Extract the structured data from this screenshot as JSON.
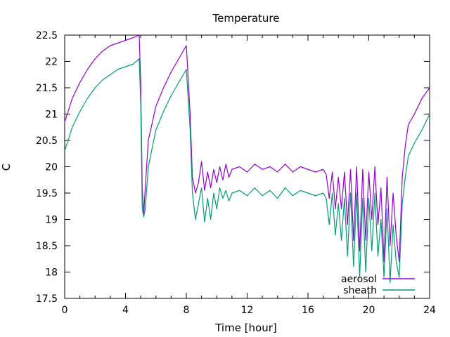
{
  "chart_data": {
    "type": "line",
    "title": "Temperature",
    "xlabel": "Time [hour]",
    "ylabel": "C",
    "xlim": [
      0,
      24
    ],
    "ylim": [
      17.5,
      22.5
    ],
    "xticks": [
      0,
      4,
      8,
      12,
      16,
      20,
      24
    ],
    "xtick_labels": [
      "0",
      "4",
      "8",
      "12",
      "16",
      "20",
      "24"
    ],
    "x_minor_step": 1,
    "yticks": [
      17.5,
      18,
      18.5,
      19,
      19.5,
      20,
      20.5,
      21,
      21.5,
      22,
      22.5
    ],
    "ytick_labels": [
      "17.5",
      "18",
      "18.5",
      "19",
      "19.5",
      "20",
      "20.5",
      "21",
      "21.5",
      "22",
      "22.5"
    ],
    "grid": false,
    "legend_position": "bottom-right",
    "series": [
      {
        "name": "aerosol",
        "color": "#9400d3",
        "x": [
          0,
          0.5,
          1,
          1.5,
          2,
          2.5,
          3,
          3.5,
          4,
          4.5,
          4.9,
          5.0,
          5.05,
          5.1,
          5.2,
          5.3,
          5.5,
          6,
          6.5,
          7,
          7.5,
          8,
          8.25,
          8.4,
          8.6,
          8.8,
          9,
          9.2,
          9.4,
          9.6,
          9.8,
          10,
          10.2,
          10.4,
          10.6,
          10.8,
          11,
          11.5,
          12,
          12.5,
          13,
          13.5,
          14,
          14.5,
          15,
          15.5,
          16,
          16.5,
          17,
          17.2,
          17.4,
          17.6,
          17.8,
          18,
          18.2,
          18.4,
          18.6,
          18.8,
          19,
          19.2,
          19.4,
          19.6,
          19.8,
          20,
          20.2,
          20.4,
          20.6,
          20.8,
          21,
          21.2,
          21.4,
          21.6,
          21.8,
          22,
          22.2,
          22.4,
          22.6,
          23,
          23.5,
          24
        ],
        "values": [
          20.85,
          21.3,
          21.6,
          21.85,
          22.05,
          22.2,
          22.3,
          22.35,
          22.4,
          22.45,
          22.5,
          21.6,
          20.6,
          19.6,
          19.1,
          19.6,
          20.5,
          21.15,
          21.5,
          21.8,
          22.05,
          22.3,
          21.0,
          19.8,
          19.5,
          19.7,
          20.1,
          19.55,
          19.9,
          19.6,
          19.95,
          19.7,
          20.0,
          19.75,
          20.05,
          19.8,
          19.95,
          20.0,
          19.9,
          20.05,
          19.95,
          20.0,
          19.9,
          20.05,
          19.9,
          20.0,
          19.95,
          19.9,
          19.95,
          19.85,
          19.4,
          19.9,
          19.2,
          19.8,
          19.2,
          19.9,
          18.9,
          19.95,
          18.6,
          20.0,
          18.4,
          19.95,
          18.6,
          19.9,
          19.0,
          20.0,
          18.9,
          19.6,
          18.2,
          19.8,
          18.5,
          19.5,
          18.7,
          18.2,
          19.8,
          20.4,
          20.8,
          21.0,
          21.3,
          21.5
        ]
      },
      {
        "name": "sheath",
        "color": "#009e73",
        "x": [
          0,
          0.5,
          1,
          1.5,
          2,
          2.5,
          3,
          3.5,
          4,
          4.5,
          4.9,
          5.0,
          5.05,
          5.1,
          5.2,
          5.3,
          5.5,
          6,
          6.5,
          7,
          7.5,
          8,
          8.25,
          8.4,
          8.6,
          8.8,
          9,
          9.2,
          9.4,
          9.6,
          9.8,
          10,
          10.2,
          10.4,
          10.6,
          10.8,
          11,
          11.5,
          12,
          12.5,
          13,
          13.5,
          14,
          14.5,
          15,
          15.5,
          16,
          16.5,
          17,
          17.2,
          17.4,
          17.6,
          17.8,
          18,
          18.2,
          18.4,
          18.6,
          18.8,
          19,
          19.2,
          19.4,
          19.6,
          19.8,
          20,
          20.2,
          20.4,
          20.6,
          20.8,
          21,
          21.2,
          21.4,
          21.6,
          21.8,
          22,
          22.2,
          22.4,
          22.6,
          23,
          23.5,
          24
        ],
        "values": [
          20.3,
          20.75,
          21.05,
          21.3,
          21.5,
          21.65,
          21.75,
          21.85,
          21.9,
          21.95,
          22.05,
          21.2,
          20.2,
          19.2,
          19.05,
          19.2,
          20.0,
          20.7,
          21.05,
          21.35,
          21.6,
          21.85,
          20.7,
          19.5,
          19.0,
          19.3,
          19.6,
          18.95,
          19.4,
          19.0,
          19.5,
          19.2,
          19.6,
          19.4,
          19.55,
          19.35,
          19.5,
          19.55,
          19.45,
          19.6,
          19.45,
          19.55,
          19.4,
          19.6,
          19.45,
          19.55,
          19.5,
          19.45,
          19.5,
          19.4,
          18.9,
          19.5,
          18.7,
          19.3,
          18.6,
          19.4,
          18.3,
          19.5,
          18.1,
          19.5,
          17.9,
          19.4,
          18.0,
          19.4,
          18.4,
          19.5,
          18.3,
          19.0,
          17.9,
          19.2,
          17.8,
          18.9,
          18.2,
          17.9,
          19.3,
          19.8,
          20.2,
          20.45,
          20.7,
          21.0
        ]
      }
    ]
  }
}
